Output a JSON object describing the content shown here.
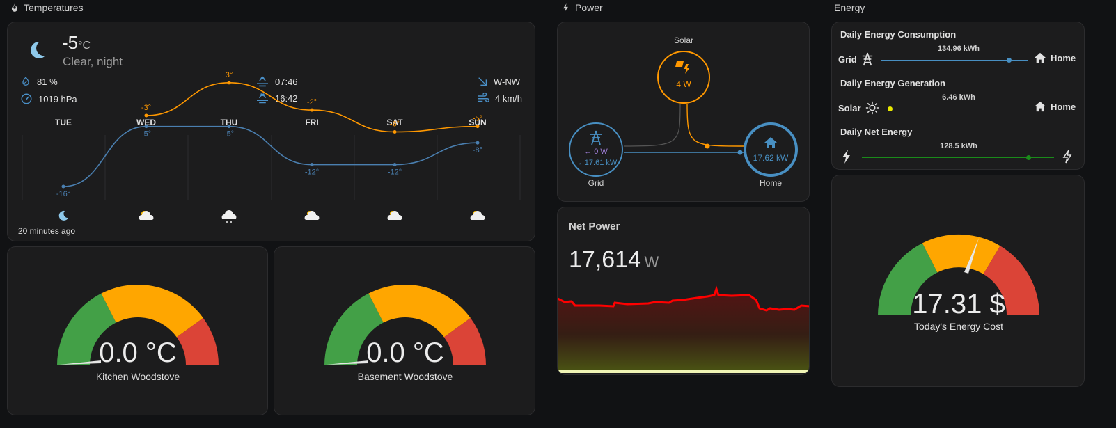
{
  "sections": {
    "temperatures": "Temperatures",
    "power": "Power",
    "energy": "Energy"
  },
  "weather": {
    "temperature": "-5",
    "unit": "°C",
    "condition": "Clear, night",
    "humidity": "81 %",
    "pressure": "1019 hPa",
    "sunrise": "07:46",
    "sunset": "16:42",
    "wind_direction": "W-NW",
    "wind_speed": "4 km/h",
    "updated": "20 minutes ago",
    "forecast": [
      {
        "day": "TUE",
        "high": "",
        "low": "-16°",
        "high_val": null,
        "low_val": -16,
        "icon": "moon-icon"
      },
      {
        "day": "WED",
        "high": "-3°",
        "low": "-5°",
        "high_val": -3,
        "low_val": -5,
        "icon": "partly-cloudy-icon"
      },
      {
        "day": "THU",
        "high": "3°",
        "low": "-5°",
        "high_val": 3,
        "low_val": -5,
        "icon": "cloudy-icon"
      },
      {
        "day": "FRI",
        "high": "-2°",
        "low": "-12°",
        "high_val": -2,
        "low_val": -12,
        "icon": "partly-cloudy-icon"
      },
      {
        "day": "SAT",
        "high": "-6°",
        "low": "-12°",
        "high_val": -6,
        "low_val": -12,
        "icon": "partly-cloudy-icon"
      },
      {
        "day": "SUN",
        "high": "-5°",
        "low": "-8°",
        "high_val": -5,
        "low_val": -8,
        "icon": "partly-cloudy-icon"
      }
    ],
    "colors": {
      "high": "#ff9800",
      "low": "#4a7fb0"
    }
  },
  "gauges": {
    "kitchen": {
      "value": "0.0 °C",
      "name": "Kitchen Woodstove",
      "fraction": 0
    },
    "basement": {
      "value": "0.0 °C",
      "name": "Basement Woodstove",
      "fraction": 0
    }
  },
  "power": {
    "solar_label": "Solar",
    "solar_value": "4 W",
    "grid_label": "Grid",
    "grid_in": "← 0 W",
    "grid_out": "→ 17.61 kW",
    "home_label": "Home",
    "home_value": "17.62 kW",
    "colors": {
      "solar": "#ff9800",
      "grid": "#488fc2",
      "grid_return": "#a280db"
    }
  },
  "net_power": {
    "title": "Net Power",
    "value": "17,614",
    "unit": "W",
    "color": "#ff0000"
  },
  "energy": {
    "consumption": {
      "title": "Daily Energy Consumption",
      "left": "Grid",
      "right": "Home",
      "value": "134.96 kWh",
      "color": "#488fc2"
    },
    "generation": {
      "title": "Daily Energy Generation",
      "left": "Solar",
      "right": "Home",
      "value": "6.46 kWh",
      "color": "#e8e800"
    },
    "net": {
      "title": "Daily Net Energy",
      "value": "128.5 kWh",
      "color": "#1a8a1a"
    }
  },
  "cost": {
    "value": "17.31 $",
    "name": "Today's Energy Cost"
  }
}
